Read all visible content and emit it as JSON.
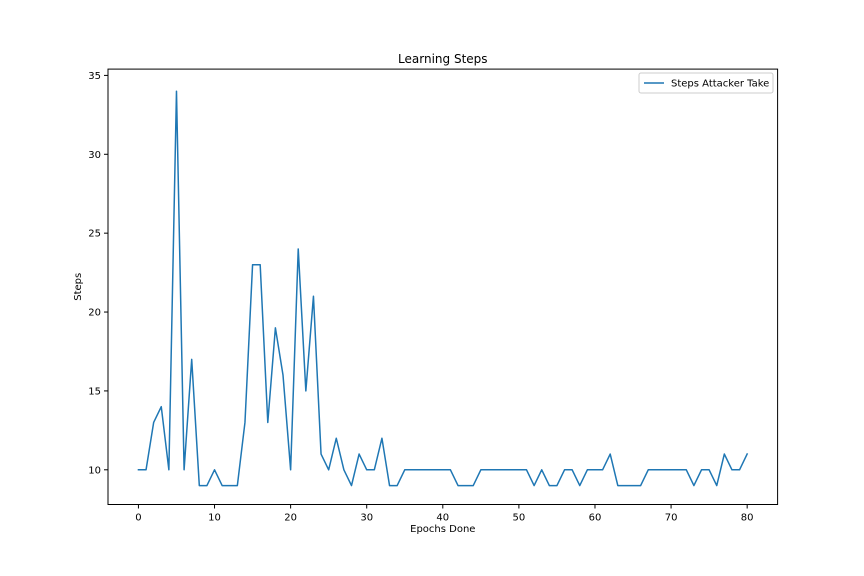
{
  "chart_data": {
    "type": "line",
    "title": "Learning Steps",
    "xlabel": "Epochs Done",
    "ylabel": "Steps",
    "xlim": [
      -4,
      84
    ],
    "ylim": [
      7.8,
      35.4
    ],
    "xticks": [
      0,
      10,
      20,
      30,
      40,
      50,
      60,
      70,
      80
    ],
    "yticks": [
      10,
      15,
      20,
      25,
      30,
      35
    ],
    "grid": false,
    "legend": "top-right",
    "colors": {
      "series": "#1f77b4"
    },
    "series": [
      {
        "name": "Steps Attacker Take",
        "x": [
          0,
          1,
          2,
          3,
          4,
          5,
          6,
          7,
          8,
          9,
          10,
          11,
          12,
          13,
          14,
          15,
          16,
          17,
          18,
          19,
          20,
          21,
          22,
          23,
          24,
          25,
          26,
          27,
          28,
          29,
          30,
          31,
          32,
          33,
          34,
          35,
          36,
          37,
          38,
          39,
          40,
          41,
          42,
          43,
          44,
          45,
          46,
          47,
          48,
          49,
          50,
          51,
          52,
          53,
          54,
          55,
          56,
          57,
          58,
          59,
          60,
          61,
          62,
          63,
          64,
          65,
          66,
          67,
          68,
          69,
          70,
          71,
          72,
          73,
          74,
          75,
          76,
          77,
          78,
          79,
          80
        ],
        "values": [
          10,
          10,
          13,
          14,
          10,
          34,
          10,
          17,
          9,
          9,
          10,
          9,
          9,
          9,
          13,
          23,
          23,
          13,
          19,
          16,
          10,
          24,
          15,
          21,
          11,
          10,
          12,
          10,
          9,
          11,
          10,
          10,
          12,
          9,
          9,
          10,
          10,
          10,
          10,
          10,
          10,
          10,
          9,
          9,
          9,
          10,
          10,
          10,
          10,
          10,
          10,
          10,
          9,
          10,
          9,
          9,
          10,
          10,
          9,
          10,
          10,
          10,
          11,
          9,
          9,
          9,
          9,
          10,
          10,
          10,
          10,
          10,
          10,
          9,
          10,
          10,
          9,
          11,
          10,
          10,
          11
        ]
      }
    ]
  }
}
